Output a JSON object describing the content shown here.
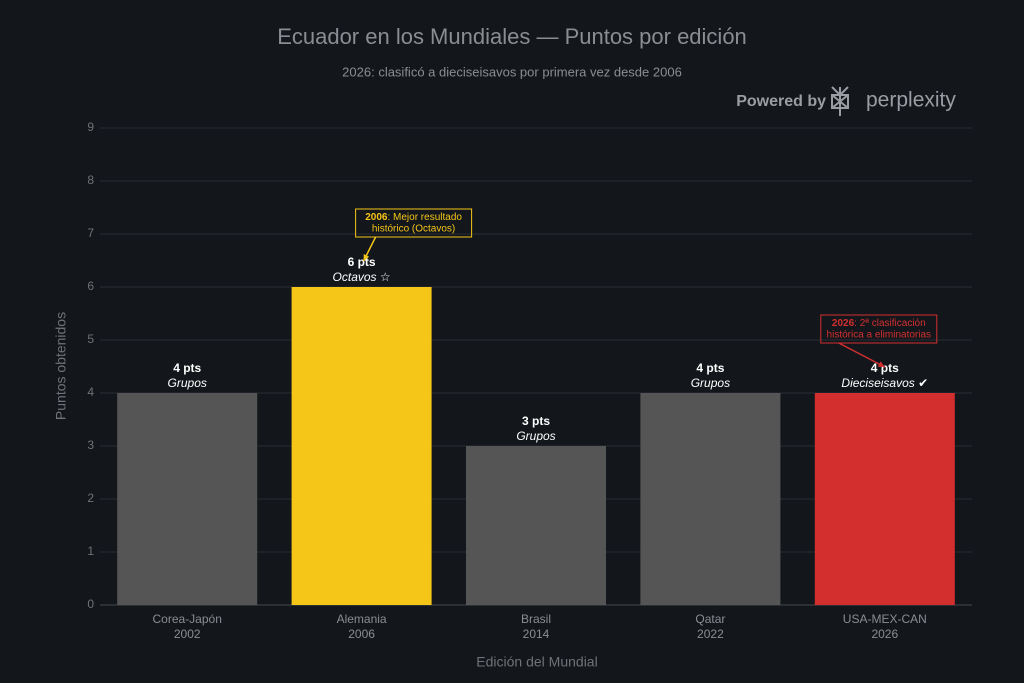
{
  "chart_data": {
    "type": "bar",
    "title": "Ecuador en los Mundiales — Puntos por edición",
    "subtitle": "2026: clasificó a dieciseisavos por primera vez desde 2006",
    "branding": {
      "prefix": "Powered by",
      "name": "perplexity"
    },
    "xlabel": "Edición del Mundial",
    "ylabel": "Puntos obtenidos",
    "categories": [
      "Corea-Japón",
      "Alemania",
      "Brasil",
      "Qatar",
      "USA-MEX-CAN"
    ],
    "years": [
      "2002",
      "2006",
      "2014",
      "2022",
      "2026"
    ],
    "values": [
      4,
      6,
      3,
      4,
      4
    ],
    "value_labels": [
      "4 pts",
      "6 pts",
      "3 pts",
      "4 pts",
      "4 pts"
    ],
    "stages": [
      "Grupos",
      "Octavos ☆",
      "Grupos",
      "Grupos",
      "Dieciseisavos ✔"
    ],
    "colors": [
      "#555555",
      "#f5c518",
      "#555555",
      "#555555",
      "#d32f2f"
    ],
    "ylim": [
      0,
      9
    ],
    "yticks": [
      0,
      1,
      2,
      3,
      4,
      5,
      6,
      7,
      8,
      9
    ],
    "grid": true,
    "annotations": [
      {
        "category": 1,
        "year": "2006",
        "lines": [
          ": Mejor resultado",
          "histórico (Octavos)"
        ],
        "color": "#f5c518"
      },
      {
        "category": 4,
        "year": "2026",
        "lines": [
          ": 2ª clasificación",
          "histórica a eliminatorias"
        ],
        "color": "#d32f2f"
      }
    ]
  }
}
